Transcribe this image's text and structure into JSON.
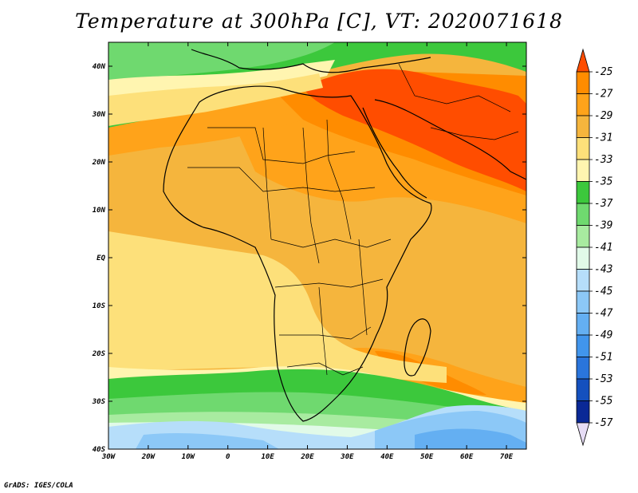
{
  "title": "Temperature at 300hPa [C], VT: 2020071618",
  "credit": "GrADS: IGES/COLA",
  "map": {
    "lon_range": [
      -30,
      75
    ],
    "lat_range": [
      -40,
      45
    ],
    "lat_ticks": [
      {
        "lat": 40,
        "label": "40N"
      },
      {
        "lat": 30,
        "label": "30N"
      },
      {
        "lat": 20,
        "label": "20N"
      },
      {
        "lat": 10,
        "label": "10N"
      },
      {
        "lat": 0,
        "label": "EQ"
      },
      {
        "lat": -10,
        "label": "10S"
      },
      {
        "lat": -20,
        "label": "20S"
      },
      {
        "lat": -30,
        "label": "30S"
      },
      {
        "lat": -40,
        "label": "40S"
      }
    ],
    "lon_ticks": [
      {
        "lon": -30,
        "label": "30W"
      },
      {
        "lon": -20,
        "label": "20W"
      },
      {
        "lon": -10,
        "label": "10W"
      },
      {
        "lon": 0,
        "label": "0"
      },
      {
        "lon": 10,
        "label": "10E"
      },
      {
        "lon": 20,
        "label": "20E"
      },
      {
        "lon": 30,
        "label": "30E"
      },
      {
        "lon": 40,
        "label": "40E"
      },
      {
        "lon": 50,
        "label": "50E"
      },
      {
        "lon": 60,
        "label": "60E"
      },
      {
        "lon": 70,
        "label": "70E"
      }
    ]
  },
  "colorbar": {
    "labels": [
      "-25",
      "-27",
      "-29",
      "-31",
      "-33",
      "-35",
      "-37",
      "-39",
      "-41",
      "-43",
      "-45",
      "-47",
      "-49",
      "-51",
      "-53",
      "-55",
      "-57"
    ],
    "colors_top_to_bottom": [
      "#ff4d00",
      "#ff8c00",
      "#ffa31a",
      "#f5b53d",
      "#fde07a",
      "#fff5b0",
      "#3cc83c",
      "#6fd96f",
      "#a8eba0",
      "#e1fae8",
      "#b6defa",
      "#8cc8f7",
      "#64aff2",
      "#4195ec",
      "#2a75dc",
      "#1450be",
      "#0a2896",
      "#e6dcf5"
    ]
  }
}
